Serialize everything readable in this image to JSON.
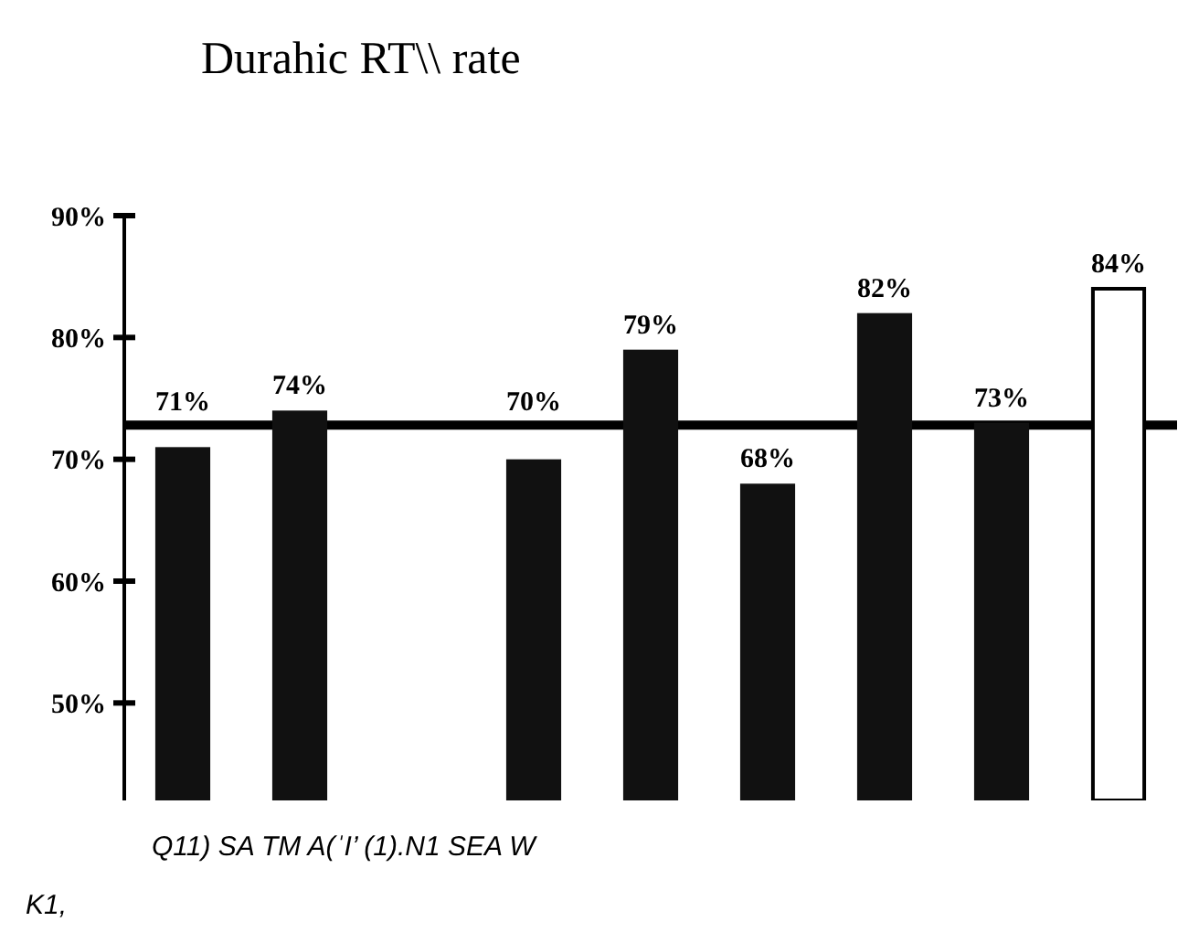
{
  "chart_data": {
    "type": "bar",
    "title": "Durahic RT\\\\ rate",
    "categories": [
      null,
      null,
      null,
      null,
      null,
      null,
      null,
      null,
      null
    ],
    "values": [
      71,
      74,
      null,
      70,
      79,
      68,
      82,
      73,
      84
    ],
    "colors": [
      "#111111",
      "#111111",
      null,
      "#111111",
      "#111111",
      "#111111",
      "#111111",
      "#111111",
      "#ffffff"
    ],
    "ylim": [
      42,
      90
    ],
    "yticks": [
      {
        "value": 50,
        "label": "50%"
      },
      {
        "value": 60,
        "label": "60%"
      },
      {
        "value": 70,
        "label": "70%"
      },
      {
        "value": 80,
        "label": "80%"
      },
      {
        "value": 90,
        "label": "90%"
      }
    ],
    "value_labels": [
      "71%",
      "74%",
      null,
      "70%",
      "79%",
      "68%",
      "82%",
      "73%",
      "84%"
    ],
    "ref_lines": [
      {
        "axis": "y",
        "value": 72.8,
        "color": "#000000"
      }
    ],
    "annotations": [
      "Q11) SA  TM A(ˈI’ (1).N1 SEA W",
      "K1,"
    ]
  }
}
